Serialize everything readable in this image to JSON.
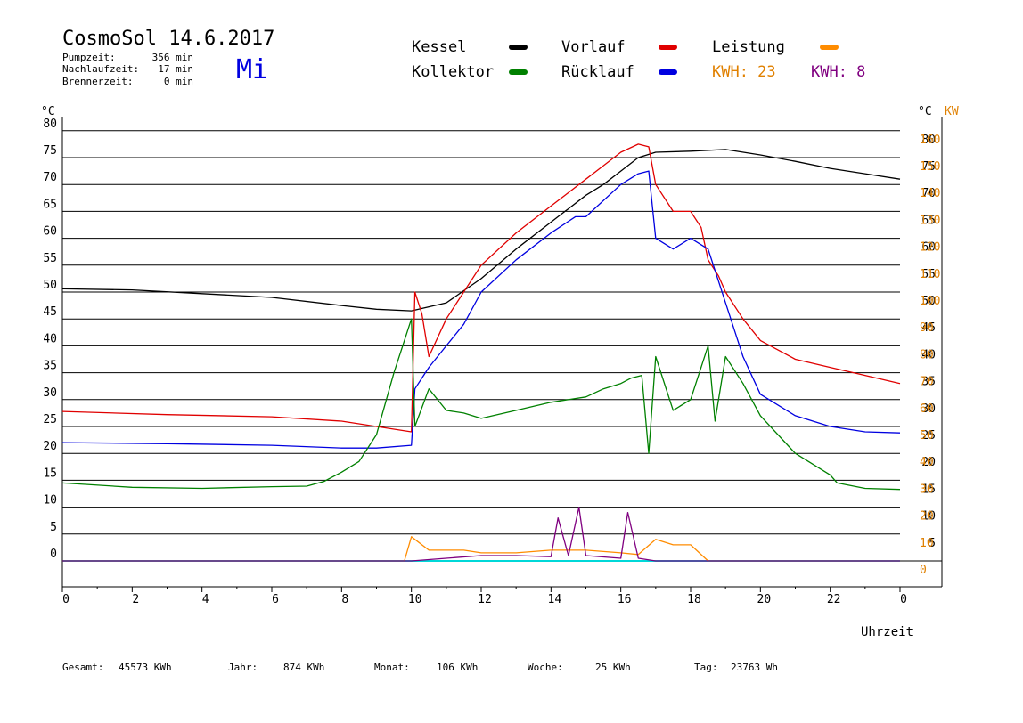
{
  "header": {
    "title": "CosmoSol 14.6.2017",
    "day": "Mi",
    "stats": [
      {
        "label": "Pumpzeit:",
        "value": "356 min"
      },
      {
        "label": "Nachlaufzeit:",
        "value": "17 min"
      },
      {
        "label": "Brennerzeit:",
        "value": "0 min"
      }
    ]
  },
  "legend": [
    {
      "label": "Kessel",
      "color": "#000000"
    },
    {
      "label": "Vorlauf",
      "color": "#e00000"
    },
    {
      "label": "Leistung",
      "color": "#ff8c00"
    },
    {
      "label": "Kollektor",
      "color": "#008000"
    },
    {
      "label": "Rücklauf",
      "color": "#0000e0"
    },
    {
      "label": "KWH: 23",
      "color": "#e08000"
    },
    {
      "label": "KWH: 8",
      "color": "#800080"
    }
  ],
  "footer": [
    {
      "label": "Gesamt:",
      "value": "45573 KWh"
    },
    {
      "label": "Jahr:",
      "value": "874 KWh"
    },
    {
      "label": "Monat:",
      "value": "106 KWh"
    },
    {
      "label": "Woche:",
      "value": "25 KWh"
    },
    {
      "label": "Tag:",
      "value": "23763 Wh"
    }
  ],
  "chart_data": {
    "type": "line",
    "xlabel": "Uhrzeit",
    "y_unit_left": "°C",
    "y_unit_right_temp": "°C",
    "y_unit_right_power": "KW",
    "xlim": [
      0,
      24
    ],
    "ylim": [
      -5,
      82
    ],
    "x_ticks": [
      "0",
      "2",
      "4",
      "6",
      "8",
      "10",
      "12",
      "14",
      "16",
      "18",
      "20",
      "22",
      "0"
    ],
    "y_ticks_left": [
      "0",
      "5",
      "10",
      "15",
      "20",
      "25",
      "30",
      "35",
      "40",
      "45",
      "50",
      "55",
      "60",
      "65",
      "70",
      "75",
      "80"
    ],
    "y_ticks_right": [
      "5",
      "10",
      "15",
      "20",
      "25",
      "30",
      "35",
      "40",
      "45",
      "50",
      "55",
      "60",
      "65",
      "70",
      "75",
      "80"
    ],
    "kw_ticks": [
      "0",
      "10",
      "20",
      "30",
      "40",
      "50",
      "60",
      "70",
      "80",
      "90",
      "100",
      "110",
      "120",
      "130",
      "140",
      "150",
      "160"
    ],
    "grid": true,
    "series": [
      {
        "name": "Kessel",
        "color": "#000000",
        "points": [
          [
            0,
            50.6
          ],
          [
            2,
            50.4
          ],
          [
            4,
            49.7
          ],
          [
            6,
            49
          ],
          [
            8,
            47.5
          ],
          [
            9,
            46.8
          ],
          [
            10,
            46.5
          ],
          [
            11,
            48
          ],
          [
            12,
            52.5
          ],
          [
            13,
            58
          ],
          [
            14,
            63
          ],
          [
            15,
            68
          ],
          [
            15.5,
            70
          ],
          [
            16,
            72.5
          ],
          [
            16.5,
            75
          ],
          [
            17,
            76
          ],
          [
            18,
            76.2
          ],
          [
            19,
            76.5
          ],
          [
            20,
            75.5
          ],
          [
            21,
            74.3
          ],
          [
            22,
            73
          ],
          [
            23,
            72
          ],
          [
            24,
            71
          ]
        ]
      },
      {
        "name": "Vorlauf",
        "color": "#e00000",
        "points": [
          [
            0,
            27.8
          ],
          [
            3,
            27.2
          ],
          [
            6,
            26.8
          ],
          [
            8,
            26
          ],
          [
            9,
            25
          ],
          [
            10,
            24
          ],
          [
            10.1,
            50
          ],
          [
            10.3,
            46
          ],
          [
            10.5,
            38
          ],
          [
            11,
            45
          ],
          [
            11.5,
            50
          ],
          [
            12,
            55
          ],
          [
            13,
            61
          ],
          [
            14,
            66
          ],
          [
            15,
            71
          ],
          [
            15.5,
            73.5
          ],
          [
            16,
            76
          ],
          [
            16.5,
            77.5
          ],
          [
            16.8,
            77
          ],
          [
            17,
            70
          ],
          [
            17.5,
            65
          ],
          [
            18,
            65
          ],
          [
            18.3,
            62
          ],
          [
            18.5,
            56
          ],
          [
            18.8,
            53
          ],
          [
            19,
            50
          ],
          [
            19.5,
            45
          ],
          [
            20,
            41
          ],
          [
            21,
            37.5
          ],
          [
            22,
            36
          ],
          [
            23,
            34.5
          ],
          [
            24,
            33
          ]
        ]
      },
      {
        "name": "Rücklauf",
        "color": "#0000e0",
        "points": [
          [
            0,
            22
          ],
          [
            3,
            21.8
          ],
          [
            6,
            21.5
          ],
          [
            8,
            21
          ],
          [
            9,
            21
          ],
          [
            10,
            21.5
          ],
          [
            10.1,
            32
          ],
          [
            10.5,
            36
          ],
          [
            11,
            40
          ],
          [
            11.5,
            44
          ],
          [
            12,
            50
          ],
          [
            13,
            56
          ],
          [
            14,
            61
          ],
          [
            14.7,
            64
          ],
          [
            15,
            64
          ],
          [
            16,
            70
          ],
          [
            16.5,
            72
          ],
          [
            16.8,
            72.5
          ],
          [
            17,
            60
          ],
          [
            17.5,
            58
          ],
          [
            18,
            60
          ],
          [
            18.5,
            58
          ],
          [
            19,
            48
          ],
          [
            19.5,
            38
          ],
          [
            20,
            31
          ],
          [
            21,
            27
          ],
          [
            22,
            25
          ],
          [
            23,
            24
          ],
          [
            24,
            23.8
          ]
        ]
      },
      {
        "name": "Kollektor",
        "color": "#008000",
        "points": [
          [
            0,
            14.5
          ],
          [
            2,
            13.7
          ],
          [
            4,
            13.5
          ],
          [
            6,
            13.8
          ],
          [
            7,
            13.9
          ],
          [
            7.5,
            14.8
          ],
          [
            8,
            16.5
          ],
          [
            8.5,
            18.5
          ],
          [
            9,
            23.5
          ],
          [
            9.5,
            35
          ],
          [
            10,
            45
          ],
          [
            10.1,
            25
          ],
          [
            10.5,
            32
          ],
          [
            11,
            28
          ],
          [
            11.5,
            27.5
          ],
          [
            12,
            26.5
          ],
          [
            13,
            28
          ],
          [
            14,
            29.5
          ],
          [
            15,
            30.5
          ],
          [
            15.5,
            32
          ],
          [
            16,
            33
          ],
          [
            16.3,
            34
          ],
          [
            16.6,
            34.5
          ],
          [
            16.8,
            20
          ],
          [
            17,
            38
          ],
          [
            17.5,
            28
          ],
          [
            18,
            30
          ],
          [
            18.5,
            40
          ],
          [
            18.7,
            26
          ],
          [
            19,
            38
          ],
          [
            19.5,
            33
          ],
          [
            20,
            27
          ],
          [
            21,
            20
          ],
          [
            22,
            16
          ],
          [
            22.2,
            14.5
          ],
          [
            23,
            13.5
          ],
          [
            24,
            13.3
          ]
        ]
      },
      {
        "name": "Leistung",
        "color": "#ff8c00",
        "points": [
          [
            0,
            0
          ],
          [
            9.8,
            0
          ],
          [
            10,
            4.5
          ],
          [
            10.5,
            2
          ],
          [
            11,
            2
          ],
          [
            11.5,
            2
          ],
          [
            12,
            1.5
          ],
          [
            13,
            1.5
          ],
          [
            14,
            2
          ],
          [
            15,
            2
          ],
          [
            16,
            1.5
          ],
          [
            16.5,
            1.2
          ],
          [
            17,
            4
          ],
          [
            17.5,
            3
          ],
          [
            18,
            3
          ],
          [
            18.5,
            0
          ],
          [
            24,
            0
          ]
        ]
      },
      {
        "name": "KWH: 8",
        "color": "#800080",
        "points": [
          [
            0,
            0
          ],
          [
            10,
            0
          ],
          [
            11,
            0.5
          ],
          [
            12,
            1
          ],
          [
            13,
            1
          ],
          [
            14,
            0.8
          ],
          [
            14.2,
            8
          ],
          [
            14.5,
            1
          ],
          [
            14.8,
            10
          ],
          [
            15,
            1
          ],
          [
            16,
            0.5
          ],
          [
            16.2,
            9
          ],
          [
            16.5,
            0.5
          ],
          [
            17,
            0
          ],
          [
            24,
            0
          ]
        ]
      }
    ]
  }
}
